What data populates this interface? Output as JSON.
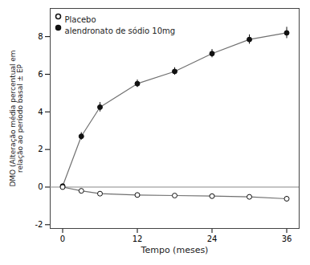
{
  "chart_data": {
    "type": "line",
    "xlabel": "Tempo (meses)",
    "ylabel": "DMO (Alteração média percentual em\nrelação ao período basal ± EP",
    "x": [
      0,
      3,
      6,
      12,
      18,
      24,
      30,
      36
    ],
    "xlim": [
      -2,
      38
    ],
    "ylim": [
      -2.2,
      9.5
    ],
    "xticks": [
      0,
      12,
      24,
      36
    ],
    "yticks": [
      -2,
      0,
      2,
      4,
      6,
      8
    ],
    "legend": "upper left",
    "series": [
      {
        "name": "alendronato de sódio 10mg",
        "color": "#111111",
        "marker": "filled",
        "values": [
          0.05,
          2.7,
          4.25,
          5.5,
          6.15,
          7.1,
          7.85,
          8.2
        ],
        "errors": [
          0.08,
          0.2,
          0.25,
          0.2,
          0.2,
          0.22,
          0.25,
          0.3
        ]
      },
      {
        "name": "Placebo",
        "color": "#111111",
        "marker": "open",
        "values": [
          0.0,
          -0.2,
          -0.35,
          -0.42,
          -0.45,
          -0.48,
          -0.52,
          -0.62
        ],
        "errors": [
          0.06,
          0.1,
          0.1,
          0.1,
          0.1,
          0.1,
          0.1,
          0.12
        ]
      }
    ]
  }
}
